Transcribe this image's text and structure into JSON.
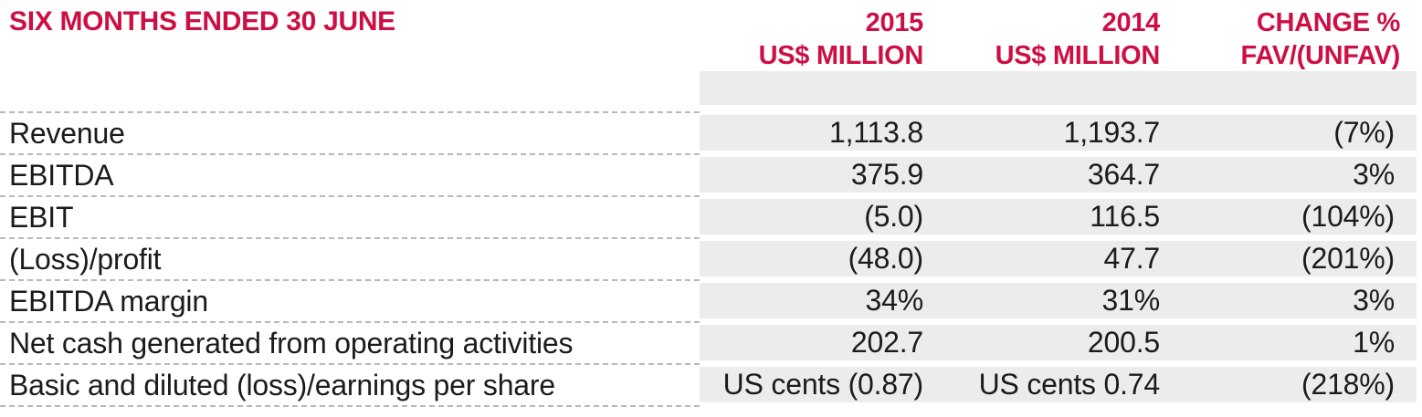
{
  "table": {
    "title": "SIX MONTHS ENDED 30 JUNE",
    "columns": [
      {
        "line1": "2015",
        "line2": "US$ MILLION"
      },
      {
        "line1": "2014",
        "line2": "US$ MILLION"
      },
      {
        "line1": "CHANGE %",
        "line2": "FAV/(UNFAV)"
      }
    ],
    "rows": [
      {
        "label": "Revenue",
        "y2015": "1,113.8",
        "y2014": "1,193.7",
        "change": "(7%)"
      },
      {
        "label": "EBITDA",
        "y2015": "375.9",
        "y2014": "364.7",
        "change": "3%"
      },
      {
        "label": "EBIT",
        "y2015": "(5.0)",
        "y2014": "116.5",
        "change": "(104%)"
      },
      {
        "label": "(Loss)/profit",
        "y2015": "(48.0)",
        "y2014": "47.7",
        "change": "(201%)"
      },
      {
        "label": "EBITDA margin",
        "y2015": "34%",
        "y2014": "31%",
        "change": "3%"
      },
      {
        "label": "Net cash generated from operating activities",
        "y2015": "202.7",
        "y2014": "200.5",
        "change": "1%"
      },
      {
        "label": "Basic and diluted (loss)/earnings per share",
        "y2015": "US cents (0.87)",
        "y2014": "US cents 0.74",
        "change": "(218%)"
      }
    ],
    "colors": {
      "accent": "#cd0f44",
      "row_shade": "#ececec",
      "dash": "#b9b9b9",
      "text": "#1b1b1b"
    }
  }
}
